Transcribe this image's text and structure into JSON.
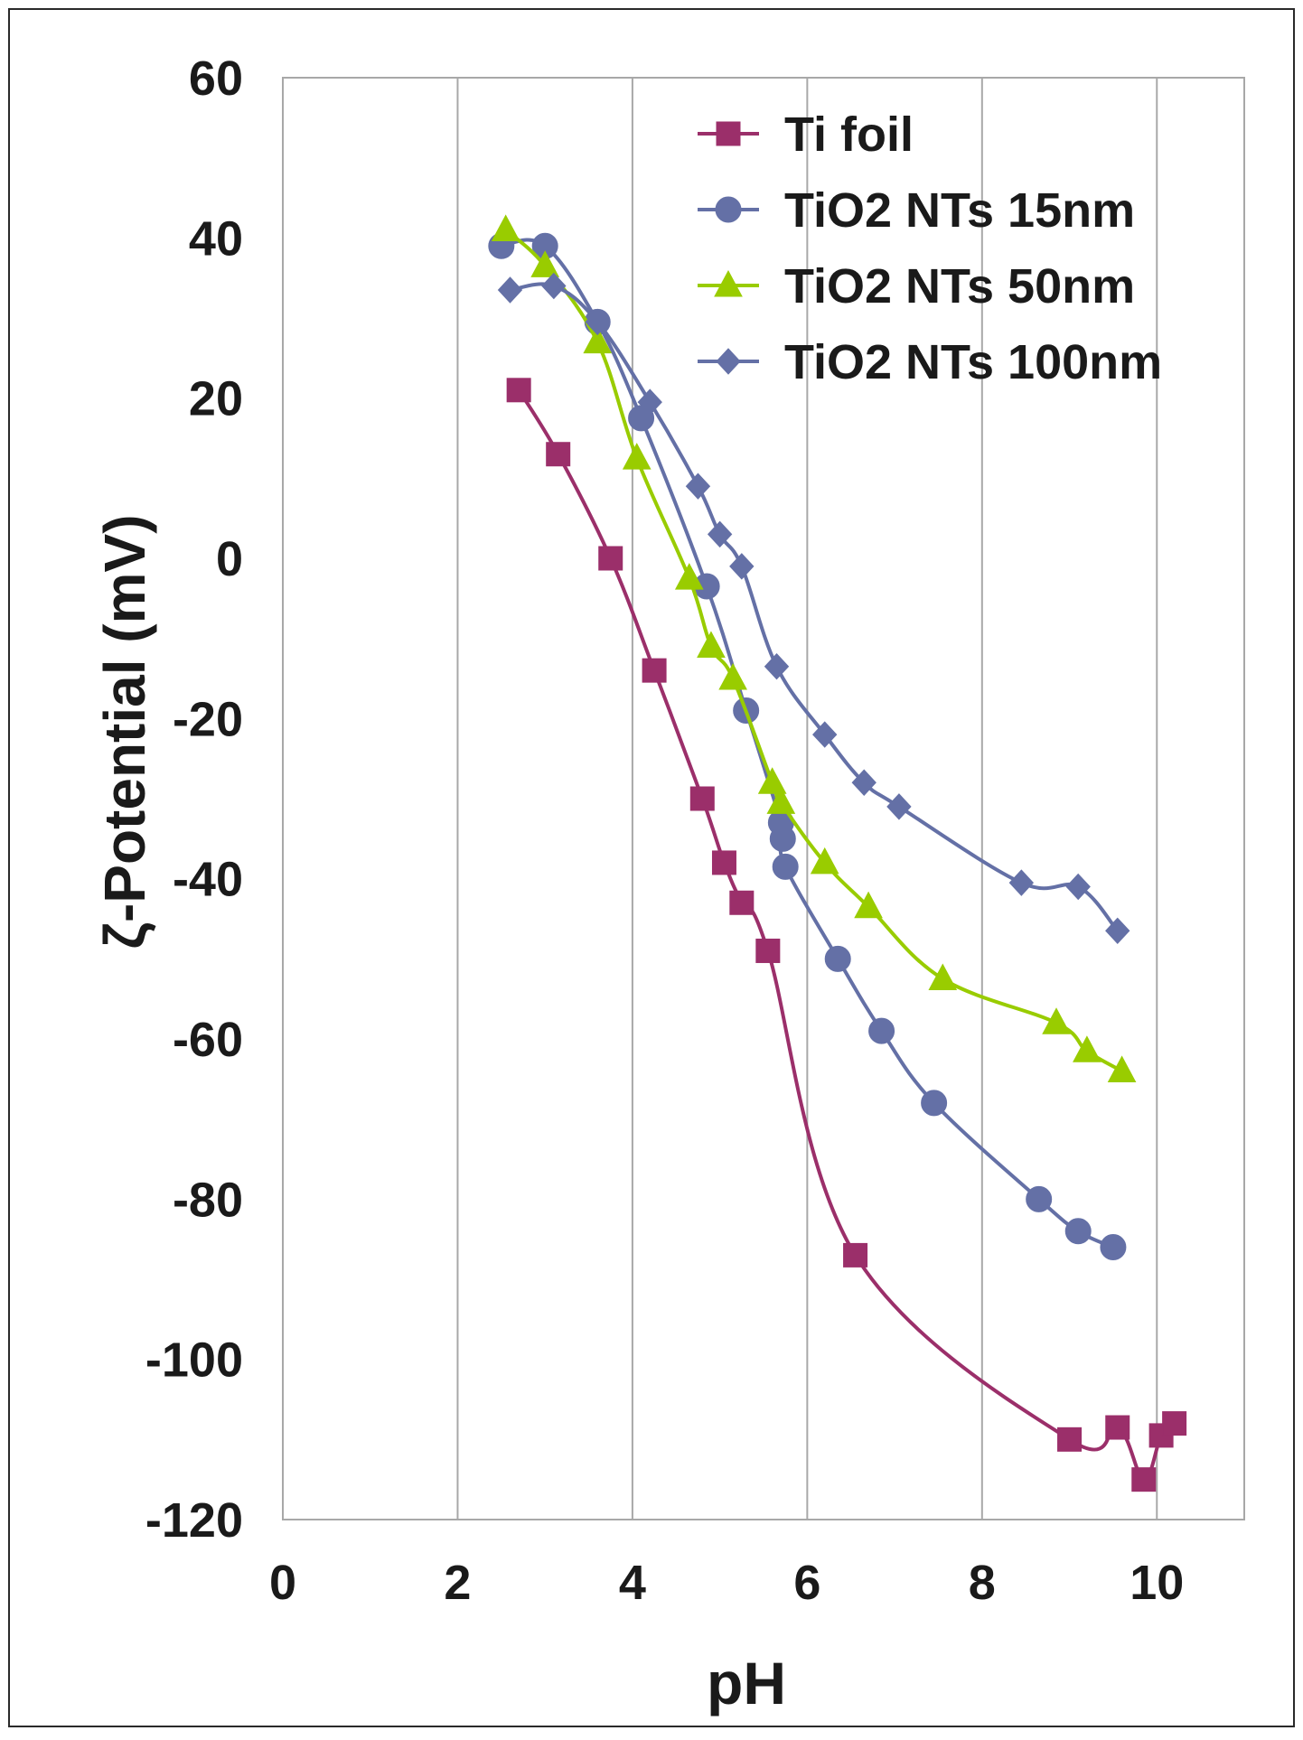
{
  "chart_data": {
    "type": "line",
    "title": "",
    "xlabel": "pH",
    "ylabel": "ζ-Potential (mV)",
    "xlim": [
      0,
      11
    ],
    "ylim": [
      -120,
      60
    ],
    "x_ticks": [
      0,
      2,
      4,
      6,
      8,
      10
    ],
    "y_ticks": [
      60,
      40,
      20,
      0,
      -20,
      -40,
      -60,
      -80,
      -100,
      -120
    ],
    "x_tick_labels": [
      "0",
      "2",
      "4",
      "6",
      "8",
      "10"
    ],
    "y_tick_labels": [
      "60",
      "40",
      "20",
      "0",
      "-20",
      "-40",
      "-60",
      "-80",
      "-100",
      "-120"
    ],
    "vertical_grid": true,
    "legend_position": "top-right",
    "series": [
      {
        "name": "Ti foil",
        "color": "#9b2f6a",
        "marker": "square",
        "points": [
          [
            2.7,
            21
          ],
          [
            3.15,
            13
          ],
          [
            3.75,
            0
          ],
          [
            4.25,
            -14
          ],
          [
            4.8,
            -30
          ],
          [
            5.05,
            -38
          ],
          [
            5.25,
            -43
          ],
          [
            5.55,
            -49
          ],
          [
            6.55,
            -87
          ],
          [
            9.0,
            -110
          ],
          [
            9.55,
            -108.5
          ],
          [
            9.85,
            -115
          ],
          [
            10.05,
            -109.5
          ],
          [
            10.2,
            -108
          ]
        ]
      },
      {
        "name": "TiO2 NTs 15nm",
        "color": "#6470a6",
        "marker": "circle",
        "points": [
          [
            2.5,
            39
          ],
          [
            3.0,
            39
          ],
          [
            3.6,
            29.5
          ],
          [
            4.1,
            17.5
          ],
          [
            4.85,
            -3.5
          ],
          [
            5.3,
            -19
          ],
          [
            5.7,
            -33
          ],
          [
            5.72,
            -35
          ],
          [
            5.75,
            -38.5
          ],
          [
            6.35,
            -50
          ],
          [
            6.85,
            -59
          ],
          [
            7.45,
            -68
          ],
          [
            8.65,
            -80
          ],
          [
            9.1,
            -84
          ],
          [
            9.5,
            -86
          ]
        ]
      },
      {
        "name": "TiO2 NTs 50nm",
        "color": "#99cc00",
        "marker": "triangle",
        "points": [
          [
            2.55,
            41
          ],
          [
            3.0,
            36.5
          ],
          [
            3.6,
            27
          ],
          [
            4.05,
            12.5
          ],
          [
            4.65,
            -2.5
          ],
          [
            4.9,
            -11
          ],
          [
            5.15,
            -15
          ],
          [
            5.6,
            -28
          ],
          [
            5.7,
            -30.5
          ],
          [
            6.2,
            -38
          ],
          [
            6.7,
            -43.5
          ],
          [
            7.55,
            -52.5
          ],
          [
            8.85,
            -58
          ],
          [
            9.2,
            -61.5
          ],
          [
            9.6,
            -64
          ]
        ]
      },
      {
        "name": "TiO2 NTs 100nm",
        "color": "#6470a6",
        "marker": "diamond",
        "points": [
          [
            2.6,
            33.5
          ],
          [
            3.1,
            34
          ],
          [
            3.6,
            29.5
          ],
          [
            4.2,
            19.5
          ],
          [
            4.75,
            9
          ],
          [
            5.0,
            3
          ],
          [
            5.25,
            -1
          ],
          [
            5.65,
            -13.5
          ],
          [
            6.2,
            -22
          ],
          [
            6.65,
            -28
          ],
          [
            7.05,
            -31
          ],
          [
            8.45,
            -40.5
          ],
          [
            9.1,
            -41
          ],
          [
            9.55,
            -46.5
          ]
        ]
      }
    ]
  },
  "colors": {
    "axes": "#a8a8a8",
    "frame": "#2a2a2a",
    "background": "#ffffff"
  }
}
